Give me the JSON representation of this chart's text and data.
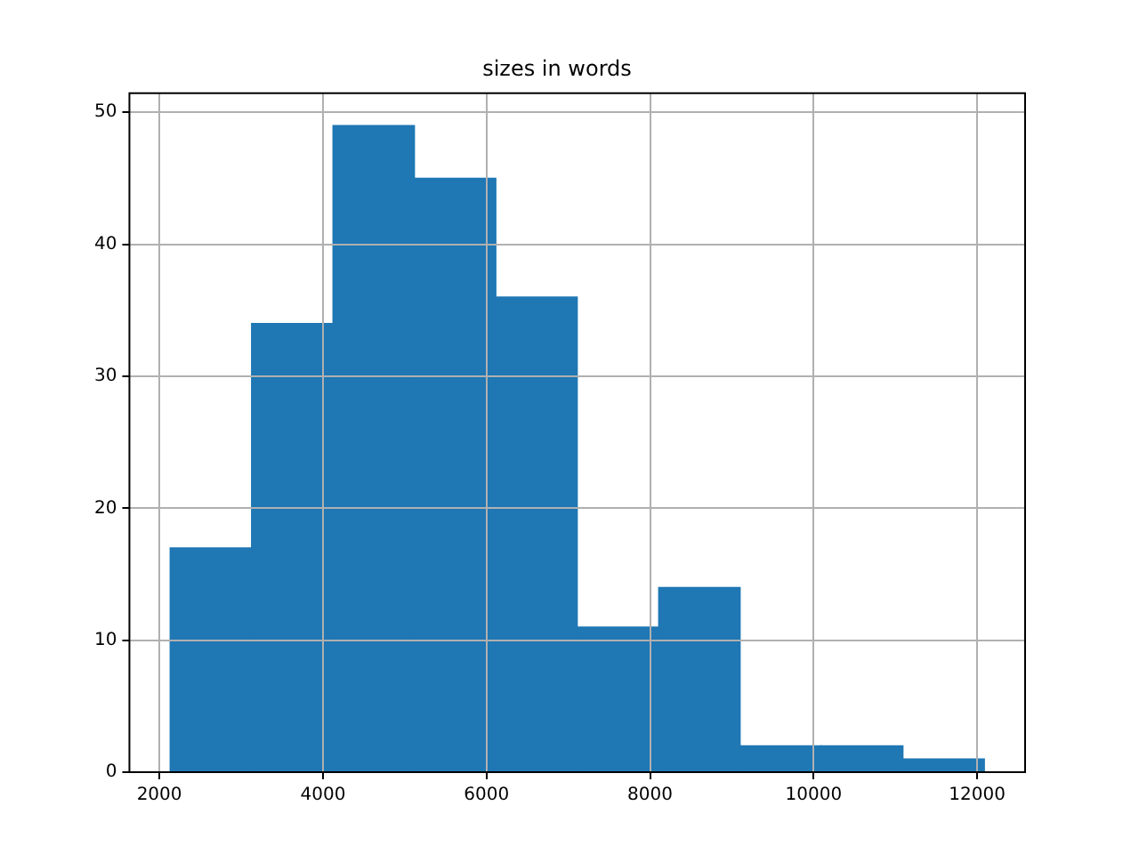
{
  "chart_data": {
    "type": "histogram",
    "title": "sizes in words",
    "bins": [
      2132,
      3128,
      4123,
      5119,
      6114,
      7110,
      8106,
      9101,
      10097,
      11092,
      12088
    ],
    "values": [
      17,
      34,
      49,
      45,
      36,
      11,
      14,
      2,
      2,
      1
    ],
    "color": "#1f77b4",
    "xlim": [
      1634,
      12586
    ],
    "xticks": [
      2000,
      4000,
      6000,
      8000,
      10000,
      12000
    ],
    "ylim": [
      0,
      51.45
    ],
    "yticks": [
      0,
      10,
      20,
      30,
      40,
      50
    ],
    "grid": true
  }
}
